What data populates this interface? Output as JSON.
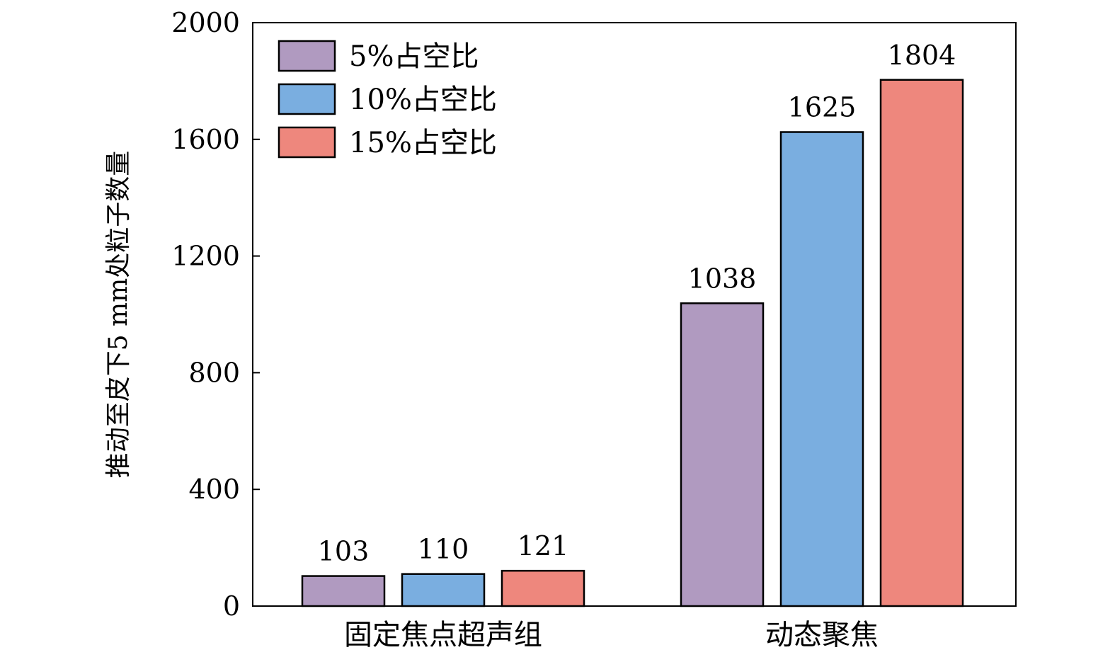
{
  "chart_data": {
    "type": "bar",
    "categories": [
      "固定焦点超声组",
      "动态聚焦"
    ],
    "series": [
      {
        "name": "5%占空比",
        "values": [
          103,
          1038
        ],
        "color": "#b09ac0"
      },
      {
        "name": "10%占空比",
        "values": [
          110,
          1625
        ],
        "color": "#7aaee0"
      },
      {
        "name": "15%占空比",
        "values": [
          121,
          1804
        ],
        "color": "#ee877d"
      }
    ],
    "title": "",
    "xlabel": "",
    "ylabel": "推动至皮下5 mm处粒子数量",
    "ylim": [
      0,
      2000
    ],
    "yticks": [
      0,
      400,
      800,
      1200,
      1600,
      2000
    ],
    "legend_position": "top-left",
    "grid": false,
    "data_labels": true
  }
}
